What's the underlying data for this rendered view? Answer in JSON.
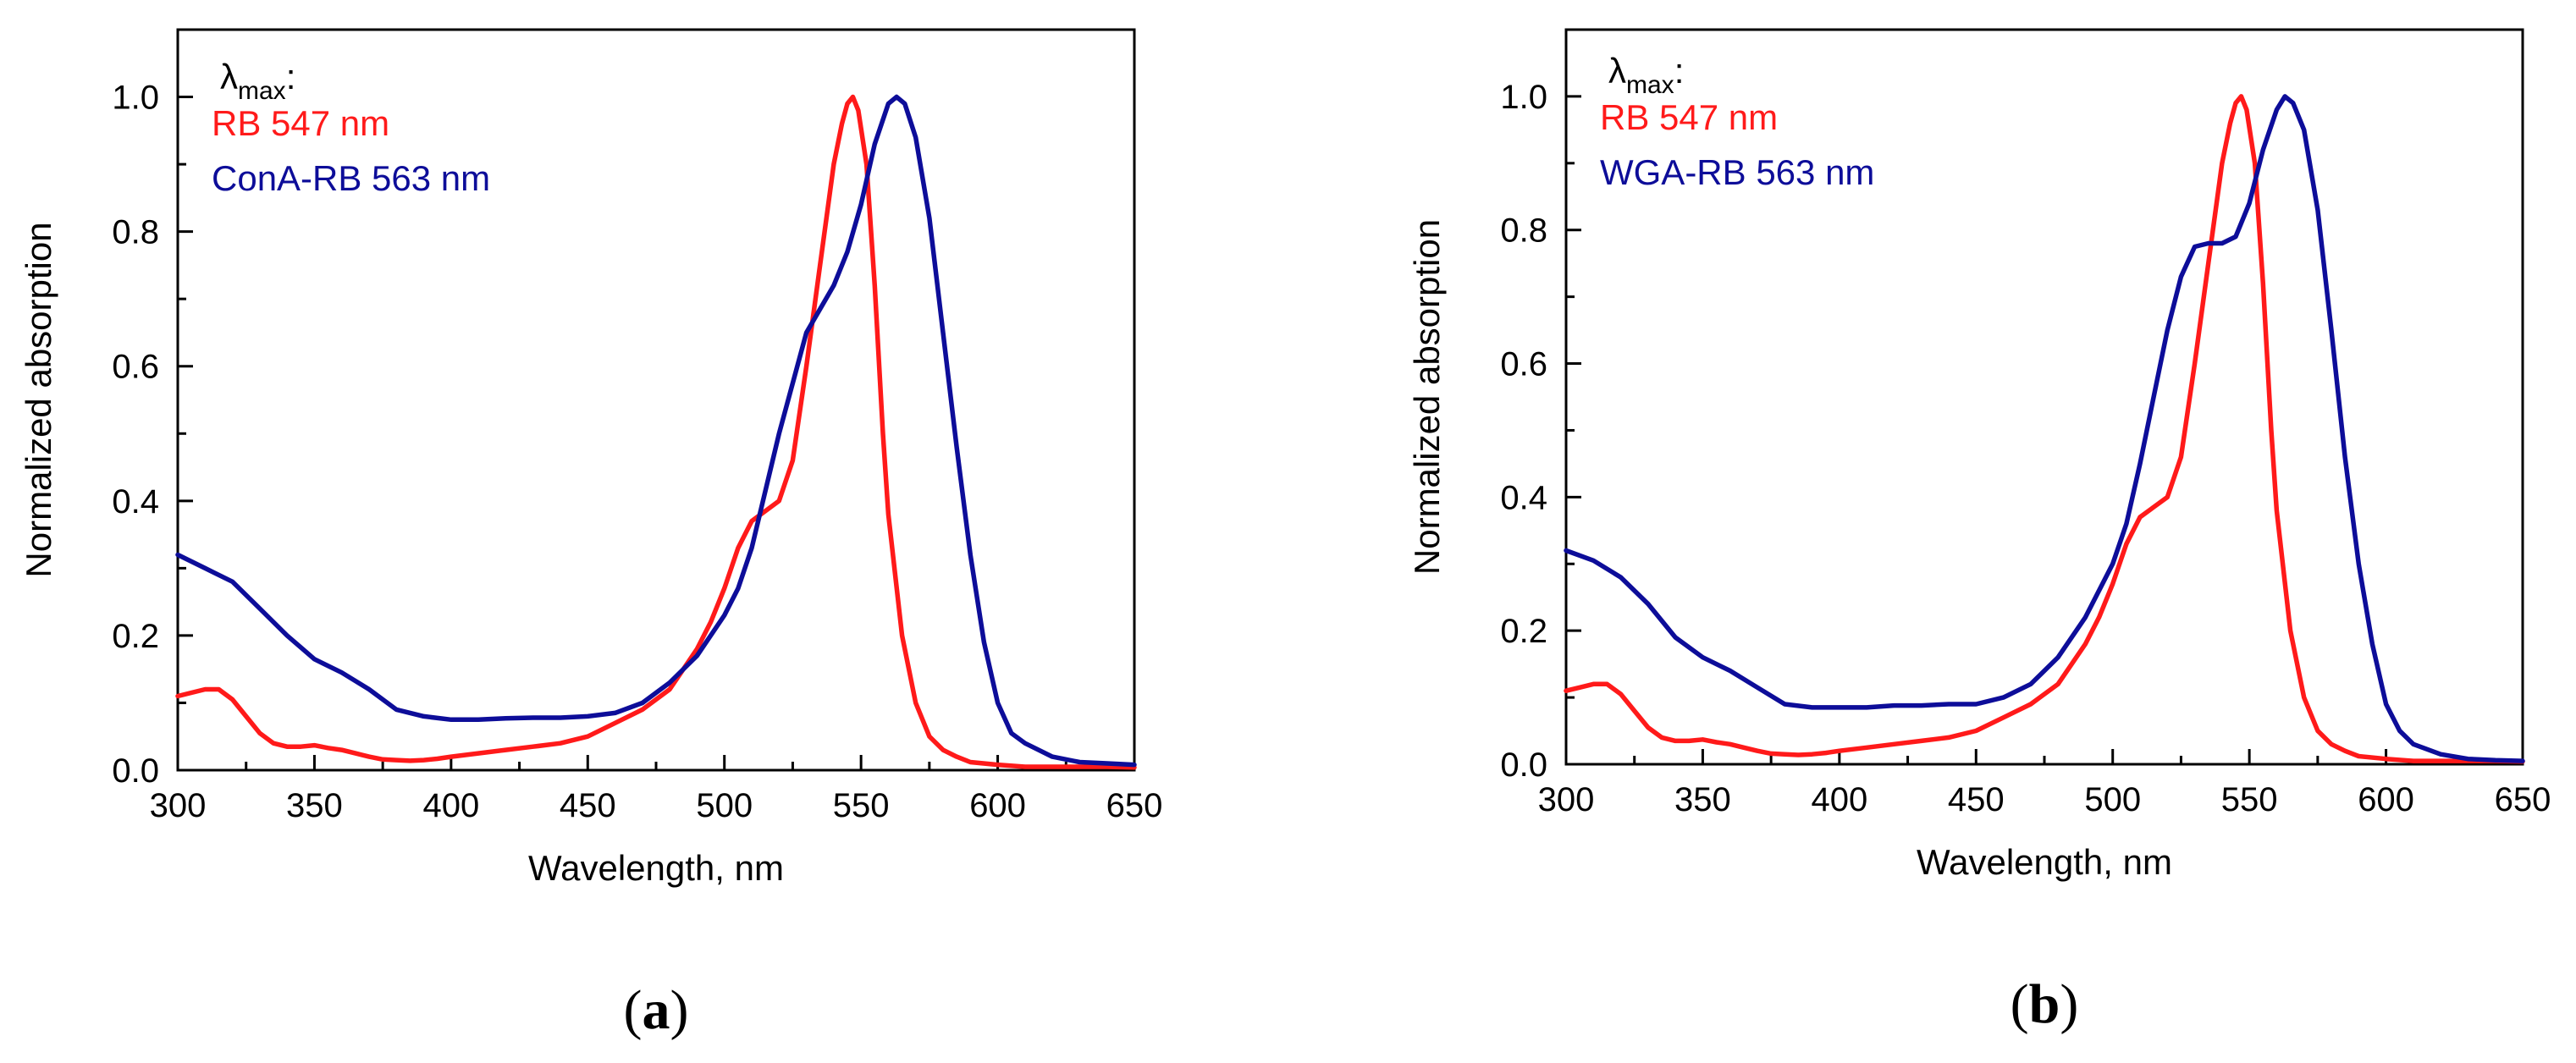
{
  "colors": {
    "rb": "#ff1a1a",
    "lectin": "#0d0d99",
    "axis": "#000000"
  },
  "chart_data": [
    {
      "type": "line",
      "panel_label": "a",
      "xlabel": "Wavelength, nm",
      "ylabel": "Normalized absorption",
      "xlim": [
        300,
        650
      ],
      "ylim": [
        0,
        1.1
      ],
      "xticks": [
        300,
        350,
        400,
        450,
        500,
        550,
        600,
        650
      ],
      "xtick_labels": [
        "300",
        "350",
        "400",
        "450",
        "500",
        "550",
        "600",
        "650"
      ],
      "yticks": [
        0,
        0.2,
        0.4,
        0.6,
        0.8,
        1.0
      ],
      "ytick_labels": [
        "0.0",
        "0.2",
        "0.4",
        "0.6",
        "0.8",
        "1.0"
      ],
      "legend": {
        "heading_symbol": "λ",
        "heading_sub": "max",
        "heading_suffix": ":",
        "entries": [
          "RB 547 nm",
          "ConA-RB 563 nm"
        ]
      },
      "series": [
        {
          "name": "RB",
          "color": "#ff1a1a",
          "x": [
            300,
            305,
            310,
            315,
            320,
            325,
            330,
            335,
            340,
            345,
            350,
            355,
            360,
            365,
            370,
            375,
            380,
            385,
            390,
            395,
            400,
            410,
            420,
            430,
            440,
            450,
            460,
            470,
            480,
            490,
            495,
            500,
            505,
            510,
            515,
            520,
            525,
            530,
            535,
            540,
            543,
            545,
            547,
            549,
            552,
            555,
            558,
            560,
            565,
            570,
            575,
            580,
            585,
            590,
            600,
            610,
            620,
            630,
            640,
            650
          ],
          "y": [
            0.11,
            0.115,
            0.12,
            0.12,
            0.105,
            0.08,
            0.055,
            0.04,
            0.035,
            0.035,
            0.037,
            0.033,
            0.03,
            0.025,
            0.02,
            0.016,
            0.015,
            0.014,
            0.015,
            0.017,
            0.02,
            0.025,
            0.03,
            0.035,
            0.04,
            0.05,
            0.07,
            0.09,
            0.12,
            0.18,
            0.22,
            0.27,
            0.33,
            0.37,
            0.385,
            0.4,
            0.46,
            0.6,
            0.75,
            0.9,
            0.96,
            0.99,
            1.0,
            0.98,
            0.9,
            0.72,
            0.5,
            0.38,
            0.2,
            0.1,
            0.05,
            0.03,
            0.02,
            0.012,
            0.008,
            0.005,
            0.005,
            0.005,
            0.005,
            0.004
          ]
        },
        {
          "name": "ConA-RB",
          "color": "#0d0d99",
          "x": [
            300,
            310,
            320,
            330,
            340,
            350,
            360,
            370,
            380,
            390,
            400,
            410,
            420,
            430,
            440,
            450,
            460,
            470,
            480,
            490,
            500,
            505,
            510,
            520,
            530,
            540,
            545,
            550,
            555,
            560,
            563,
            566,
            570,
            575,
            580,
            585,
            590,
            595,
            600,
            605,
            610,
            620,
            630,
            640,
            650
          ],
          "y": [
            0.32,
            0.3,
            0.28,
            0.24,
            0.2,
            0.165,
            0.145,
            0.12,
            0.09,
            0.08,
            0.075,
            0.075,
            0.077,
            0.078,
            0.078,
            0.08,
            0.085,
            0.1,
            0.13,
            0.17,
            0.23,
            0.27,
            0.33,
            0.5,
            0.65,
            0.72,
            0.77,
            0.84,
            0.93,
            0.99,
            1.0,
            0.99,
            0.94,
            0.82,
            0.65,
            0.48,
            0.32,
            0.19,
            0.1,
            0.055,
            0.04,
            0.02,
            0.012,
            0.01,
            0.008
          ]
        }
      ]
    },
    {
      "type": "line",
      "panel_label": "b",
      "xlabel": "Wavelength, nm",
      "ylabel": "Normalized absorption",
      "xlim": [
        300,
        650
      ],
      "ylim": [
        0,
        1.1
      ],
      "xticks": [
        300,
        350,
        400,
        450,
        500,
        550,
        600,
        650
      ],
      "xtick_labels": [
        "300",
        "350",
        "400",
        "450",
        "500",
        "550",
        "600",
        "650"
      ],
      "yticks": [
        0,
        0.2,
        0.4,
        0.6,
        0.8,
        1.0
      ],
      "ytick_labels": [
        "0.0",
        "0.2",
        "0.4",
        "0.6",
        "0.8",
        "1.0"
      ],
      "legend": {
        "heading_symbol": "λ",
        "heading_sub": "max",
        "heading_suffix": ":",
        "entries": [
          "RB 547 nm",
          "WGA-RB 563 nm"
        ]
      },
      "series": [
        {
          "name": "RB",
          "color": "#ff1a1a",
          "x": [
            300,
            305,
            310,
            315,
            320,
            325,
            330,
            335,
            340,
            345,
            350,
            355,
            360,
            365,
            370,
            375,
            380,
            385,
            390,
            395,
            400,
            410,
            420,
            430,
            440,
            450,
            460,
            470,
            480,
            490,
            495,
            500,
            505,
            510,
            515,
            520,
            525,
            530,
            535,
            540,
            543,
            545,
            547,
            549,
            552,
            555,
            558,
            560,
            565,
            570,
            575,
            580,
            585,
            590,
            600,
            610,
            620,
            630,
            640,
            650
          ],
          "y": [
            0.11,
            0.115,
            0.12,
            0.12,
            0.105,
            0.08,
            0.055,
            0.04,
            0.035,
            0.035,
            0.037,
            0.033,
            0.03,
            0.025,
            0.02,
            0.016,
            0.015,
            0.014,
            0.015,
            0.017,
            0.02,
            0.025,
            0.03,
            0.035,
            0.04,
            0.05,
            0.07,
            0.09,
            0.12,
            0.18,
            0.22,
            0.27,
            0.33,
            0.37,
            0.385,
            0.4,
            0.46,
            0.6,
            0.75,
            0.9,
            0.96,
            0.99,
            1.0,
            0.98,
            0.9,
            0.72,
            0.5,
            0.38,
            0.2,
            0.1,
            0.05,
            0.03,
            0.02,
            0.012,
            0.008,
            0.005,
            0.005,
            0.005,
            0.005,
            0.004
          ]
        },
        {
          "name": "WGA-RB",
          "color": "#0d0d99",
          "x": [
            300,
            310,
            320,
            330,
            340,
            350,
            360,
            370,
            380,
            390,
            400,
            410,
            420,
            430,
            440,
            450,
            460,
            470,
            480,
            490,
            500,
            505,
            510,
            515,
            520,
            525,
            530,
            535,
            540,
            545,
            550,
            555,
            560,
            563,
            566,
            570,
            575,
            580,
            585,
            590,
            595,
            600,
            605,
            610,
            620,
            630,
            640,
            650
          ],
          "y": [
            0.32,
            0.305,
            0.28,
            0.24,
            0.19,
            0.16,
            0.14,
            0.115,
            0.09,
            0.085,
            0.085,
            0.085,
            0.088,
            0.088,
            0.09,
            0.09,
            0.1,
            0.12,
            0.16,
            0.22,
            0.3,
            0.36,
            0.45,
            0.55,
            0.65,
            0.73,
            0.775,
            0.78,
            0.78,
            0.79,
            0.84,
            0.92,
            0.98,
            1.0,
            0.99,
            0.95,
            0.83,
            0.65,
            0.46,
            0.3,
            0.18,
            0.09,
            0.05,
            0.03,
            0.015,
            0.008,
            0.006,
            0.005
          ]
        }
      ]
    }
  ]
}
